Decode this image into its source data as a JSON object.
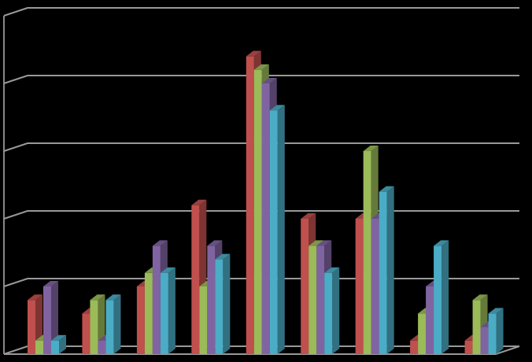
{
  "chart_data": {
    "type": "bar3d",
    "categories": [
      null,
      null,
      null,
      null,
      null,
      null,
      null,
      null,
      null
    ],
    "series": [
      {
        "color": "#c0504d",
        "values": [
          0.8,
          0.6,
          1.0,
          2.2,
          4.4,
          2.0,
          2.0,
          0.2,
          0.2
        ]
      },
      {
        "color": "#9bbb59",
        "values": [
          0.2,
          0.8,
          1.2,
          1.0,
          4.2,
          1.6,
          3.0,
          0.6,
          0.8
        ]
      },
      {
        "color": "#8064a2",
        "values": [
          1.0,
          0.2,
          1.6,
          1.6,
          4.0,
          1.6,
          2.0,
          1.0,
          0.4
        ]
      },
      {
        "color": "#4bacc6",
        "values": [
          0.2,
          0.8,
          1.2,
          1.4,
          3.6,
          1.2,
          2.4,
          1.6,
          0.6
        ]
      }
    ],
    "ylim": [
      0,
      5
    ],
    "yticks": [
      0,
      1,
      2,
      3,
      4,
      5
    ],
    "grid": true
  }
}
